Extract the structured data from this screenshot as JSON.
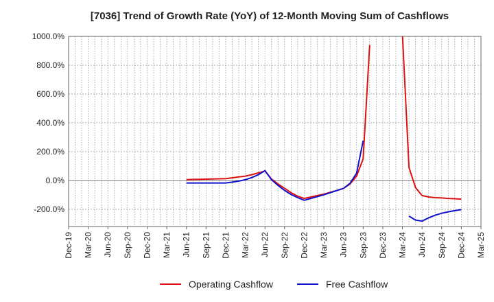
{
  "chart_data": {
    "type": "line",
    "title": "[7036]  Trend of Growth Rate (YoY) of 12-Month Moving Sum of Cashflows",
    "xlabel": "",
    "ylabel": "",
    "ylim": [
      -320,
      1000
    ],
    "y_ticks": [
      1000,
      800,
      600,
      400,
      200,
      0,
      -200
    ],
    "y_tick_labels": [
      "1000.0%",
      "800.0%",
      "600.0%",
      "400.0%",
      "200.0%",
      "0.0%",
      "-200.0%"
    ],
    "x_tick_labels": [
      "Dec-19",
      "Mar-20",
      "Jun-20",
      "Sep-20",
      "Dec-20",
      "Mar-21",
      "Jun-21",
      "Sep-21",
      "Dec-21",
      "Mar-22",
      "Jun-22",
      "Sep-22",
      "Dec-22",
      "Mar-23",
      "Jun-23",
      "Sep-23",
      "Dec-23",
      "Mar-24",
      "Jun-24",
      "Sep-24",
      "Dec-24",
      "Mar-25"
    ],
    "grid": true,
    "legend_position": "bottom",
    "series": [
      {
        "name": "Operating Cashflow",
        "color": "#dd1111",
        "points": [
          [
            "Jun-21",
            5
          ],
          [
            "Jul-21",
            7
          ],
          [
            "Aug-21",
            8
          ],
          [
            "Sep-21",
            9
          ],
          [
            "Oct-21",
            10
          ],
          [
            "Nov-21",
            11
          ],
          [
            "Dec-21",
            12
          ],
          [
            "Jan-22",
            18
          ],
          [
            "Feb-22",
            24
          ],
          [
            "Mar-22",
            30
          ],
          [
            "Apr-22",
            40
          ],
          [
            "May-22",
            52
          ],
          [
            "Jun-22",
            65
          ],
          [
            "Jul-22",
            10
          ],
          [
            "Aug-22",
            -25
          ],
          [
            "Sep-22",
            -55
          ],
          [
            "Oct-22",
            -85
          ],
          [
            "Nov-22",
            -110
          ],
          [
            "Dec-22",
            -125
          ],
          [
            "Jan-23",
            -115
          ],
          [
            "Feb-23",
            -105
          ],
          [
            "Mar-23",
            -95
          ],
          [
            "Apr-23",
            -82
          ],
          [
            "May-23",
            -70
          ],
          [
            "Jun-23",
            -55
          ],
          [
            "Jul-23",
            -25
          ],
          [
            "Aug-23",
            30
          ],
          [
            "Sep-23",
            150
          ],
          [
            "Oct-23",
            940
          ],
          null,
          [
            "Mar-24",
            1020
          ],
          [
            "Apr-24",
            90
          ],
          [
            "May-24",
            -50
          ],
          [
            "Jun-24",
            -105
          ],
          [
            "Jul-24",
            -115
          ],
          [
            "Aug-24",
            -120
          ],
          [
            "Sep-24",
            -122
          ],
          [
            "Oct-24",
            -125
          ],
          [
            "Nov-24",
            -127
          ],
          [
            "Dec-24",
            -130
          ]
        ]
      },
      {
        "name": "Free Cashflow",
        "color": "#1111cc",
        "points": [
          [
            "Jun-21",
            -18
          ],
          [
            "Jul-21",
            -18
          ],
          [
            "Aug-21",
            -18
          ],
          [
            "Sep-21",
            -18
          ],
          [
            "Oct-21",
            -18
          ],
          [
            "Nov-21",
            -18
          ],
          [
            "Dec-21",
            -18
          ],
          [
            "Jan-22",
            -12
          ],
          [
            "Feb-22",
            -5
          ],
          [
            "Mar-22",
            5
          ],
          [
            "Apr-22",
            20
          ],
          [
            "May-22",
            40
          ],
          [
            "Jun-22",
            68
          ],
          [
            "Jul-22",
            5
          ],
          [
            "Aug-22",
            -35
          ],
          [
            "Sep-22",
            -70
          ],
          [
            "Oct-22",
            -98
          ],
          [
            "Nov-22",
            -120
          ],
          [
            "Dec-22",
            -138
          ],
          [
            "Jan-23",
            -125
          ],
          [
            "Feb-23",
            -112
          ],
          [
            "Mar-23",
            -100
          ],
          [
            "Apr-23",
            -85
          ],
          [
            "May-23",
            -70
          ],
          [
            "Jun-23",
            -55
          ],
          [
            "Jul-23",
            -20
          ],
          [
            "Aug-23",
            50
          ],
          [
            "Sep-23",
            275
          ],
          null,
          [
            "Apr-24",
            -248
          ],
          [
            "May-24",
            -275
          ],
          [
            "Jun-24",
            -283
          ],
          [
            "Jul-24",
            -260
          ],
          [
            "Aug-24",
            -242
          ],
          [
            "Sep-24",
            -228
          ],
          [
            "Oct-24",
            -218
          ],
          [
            "Nov-24",
            -210
          ],
          [
            "Dec-24",
            -203
          ]
        ]
      }
    ]
  }
}
